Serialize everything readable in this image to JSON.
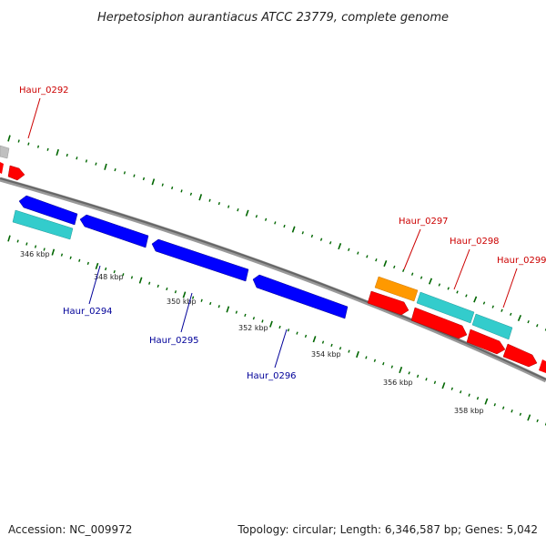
{
  "title": "Herpetosiphon aurantiacus ATCC 23779, complete genome",
  "footer": {
    "accession": "Accession: NC_009972",
    "summary": "Topology: circular; Length: 6,346,587 bp; Genes: 5,042"
  },
  "colors": {
    "forward_gene": "#ff0000",
    "reverse_gene": "#0000ff",
    "cyan_feature": "#33cccc",
    "orange_feature": "#ff9900",
    "grey_feature": "#bbbbbb",
    "backbone": "#888888",
    "tick": "#006600",
    "forward_label": "#cc0000",
    "reverse_label": "#000099"
  },
  "tick_labels": [
    "346 kbp",
    "348 kbp",
    "350 kbp",
    "352 kbp",
    "354 kbp",
    "356 kbp",
    "358 kbp"
  ],
  "gene_labels": {
    "forward": [
      "Haur_0292",
      "Haur_0297",
      "Haur_0298",
      "Haur_0299"
    ],
    "reverse": [
      "Haur_0294",
      "Haur_0295",
      "Haur_0296"
    ]
  }
}
